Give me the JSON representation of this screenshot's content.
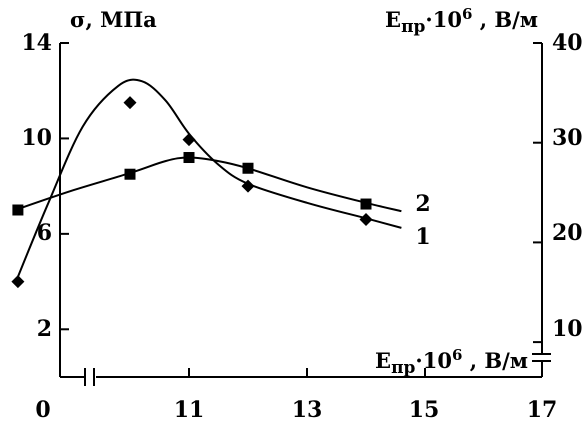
{
  "chart_data": {
    "type": "line",
    "grid": false,
    "legend": "inline labels at line ends",
    "xlabel": {
      "base": "E",
      "sub": "пр",
      "mid": "·10",
      "sup": "6",
      "tail": " , В/м"
    },
    "ylabel_left": "σ, МПа",
    "ylabel_right": {
      "base": "E",
      "sub": "пр",
      "mid": "·10",
      "sup": "6",
      "tail": " , В/м"
    },
    "x_ticks": [
      "0",
      "11",
      "13",
      "15",
      "17"
    ],
    "y_left_ticks": [
      "14",
      "10",
      "6",
      "2"
    ],
    "y_right_ticks": [
      "40",
      "30",
      "20",
      "10"
    ],
    "xlim": [
      8,
      17
    ],
    "ylim_left": [
      0,
      14
    ],
    "ylim_right": [
      6.5,
      40
    ],
    "x_axis_break": true,
    "right_axis_break": true,
    "series": [
      {
        "label": "1",
        "marker": "diamond",
        "axis": "left",
        "points": [
          [
            8.1,
            4.0
          ],
          [
            10.0,
            11.5
          ],
          [
            11.0,
            9.95
          ],
          [
            12.0,
            8.0
          ],
          [
            14.0,
            6.6
          ]
        ],
        "curve": [
          [
            8.05,
            3.9
          ],
          [
            8.6,
            7.2
          ],
          [
            9.2,
            10.5
          ],
          [
            9.8,
            12.2
          ],
          [
            10.2,
            12.4
          ],
          [
            10.6,
            11.6
          ],
          [
            11.0,
            10.2
          ],
          [
            11.5,
            8.9
          ],
          [
            12.0,
            8.1
          ],
          [
            13.0,
            7.3
          ],
          [
            14.0,
            6.65
          ],
          [
            14.6,
            6.25
          ]
        ]
      },
      {
        "label": "2",
        "marker": "square",
        "axis": "left",
        "points": [
          [
            8.1,
            7.0
          ],
          [
            10.0,
            8.5
          ],
          [
            11.0,
            9.2
          ],
          [
            12.0,
            8.75
          ],
          [
            14.0,
            7.25
          ]
        ],
        "curve": [
          [
            8.05,
            7.0
          ],
          [
            9.0,
            7.8
          ],
          [
            10.0,
            8.55
          ],
          [
            10.6,
            9.05
          ],
          [
            11.0,
            9.2
          ],
          [
            11.5,
            9.05
          ],
          [
            12.0,
            8.75
          ],
          [
            13.0,
            7.95
          ],
          [
            14.0,
            7.3
          ],
          [
            14.6,
            6.95
          ]
        ]
      }
    ]
  }
}
